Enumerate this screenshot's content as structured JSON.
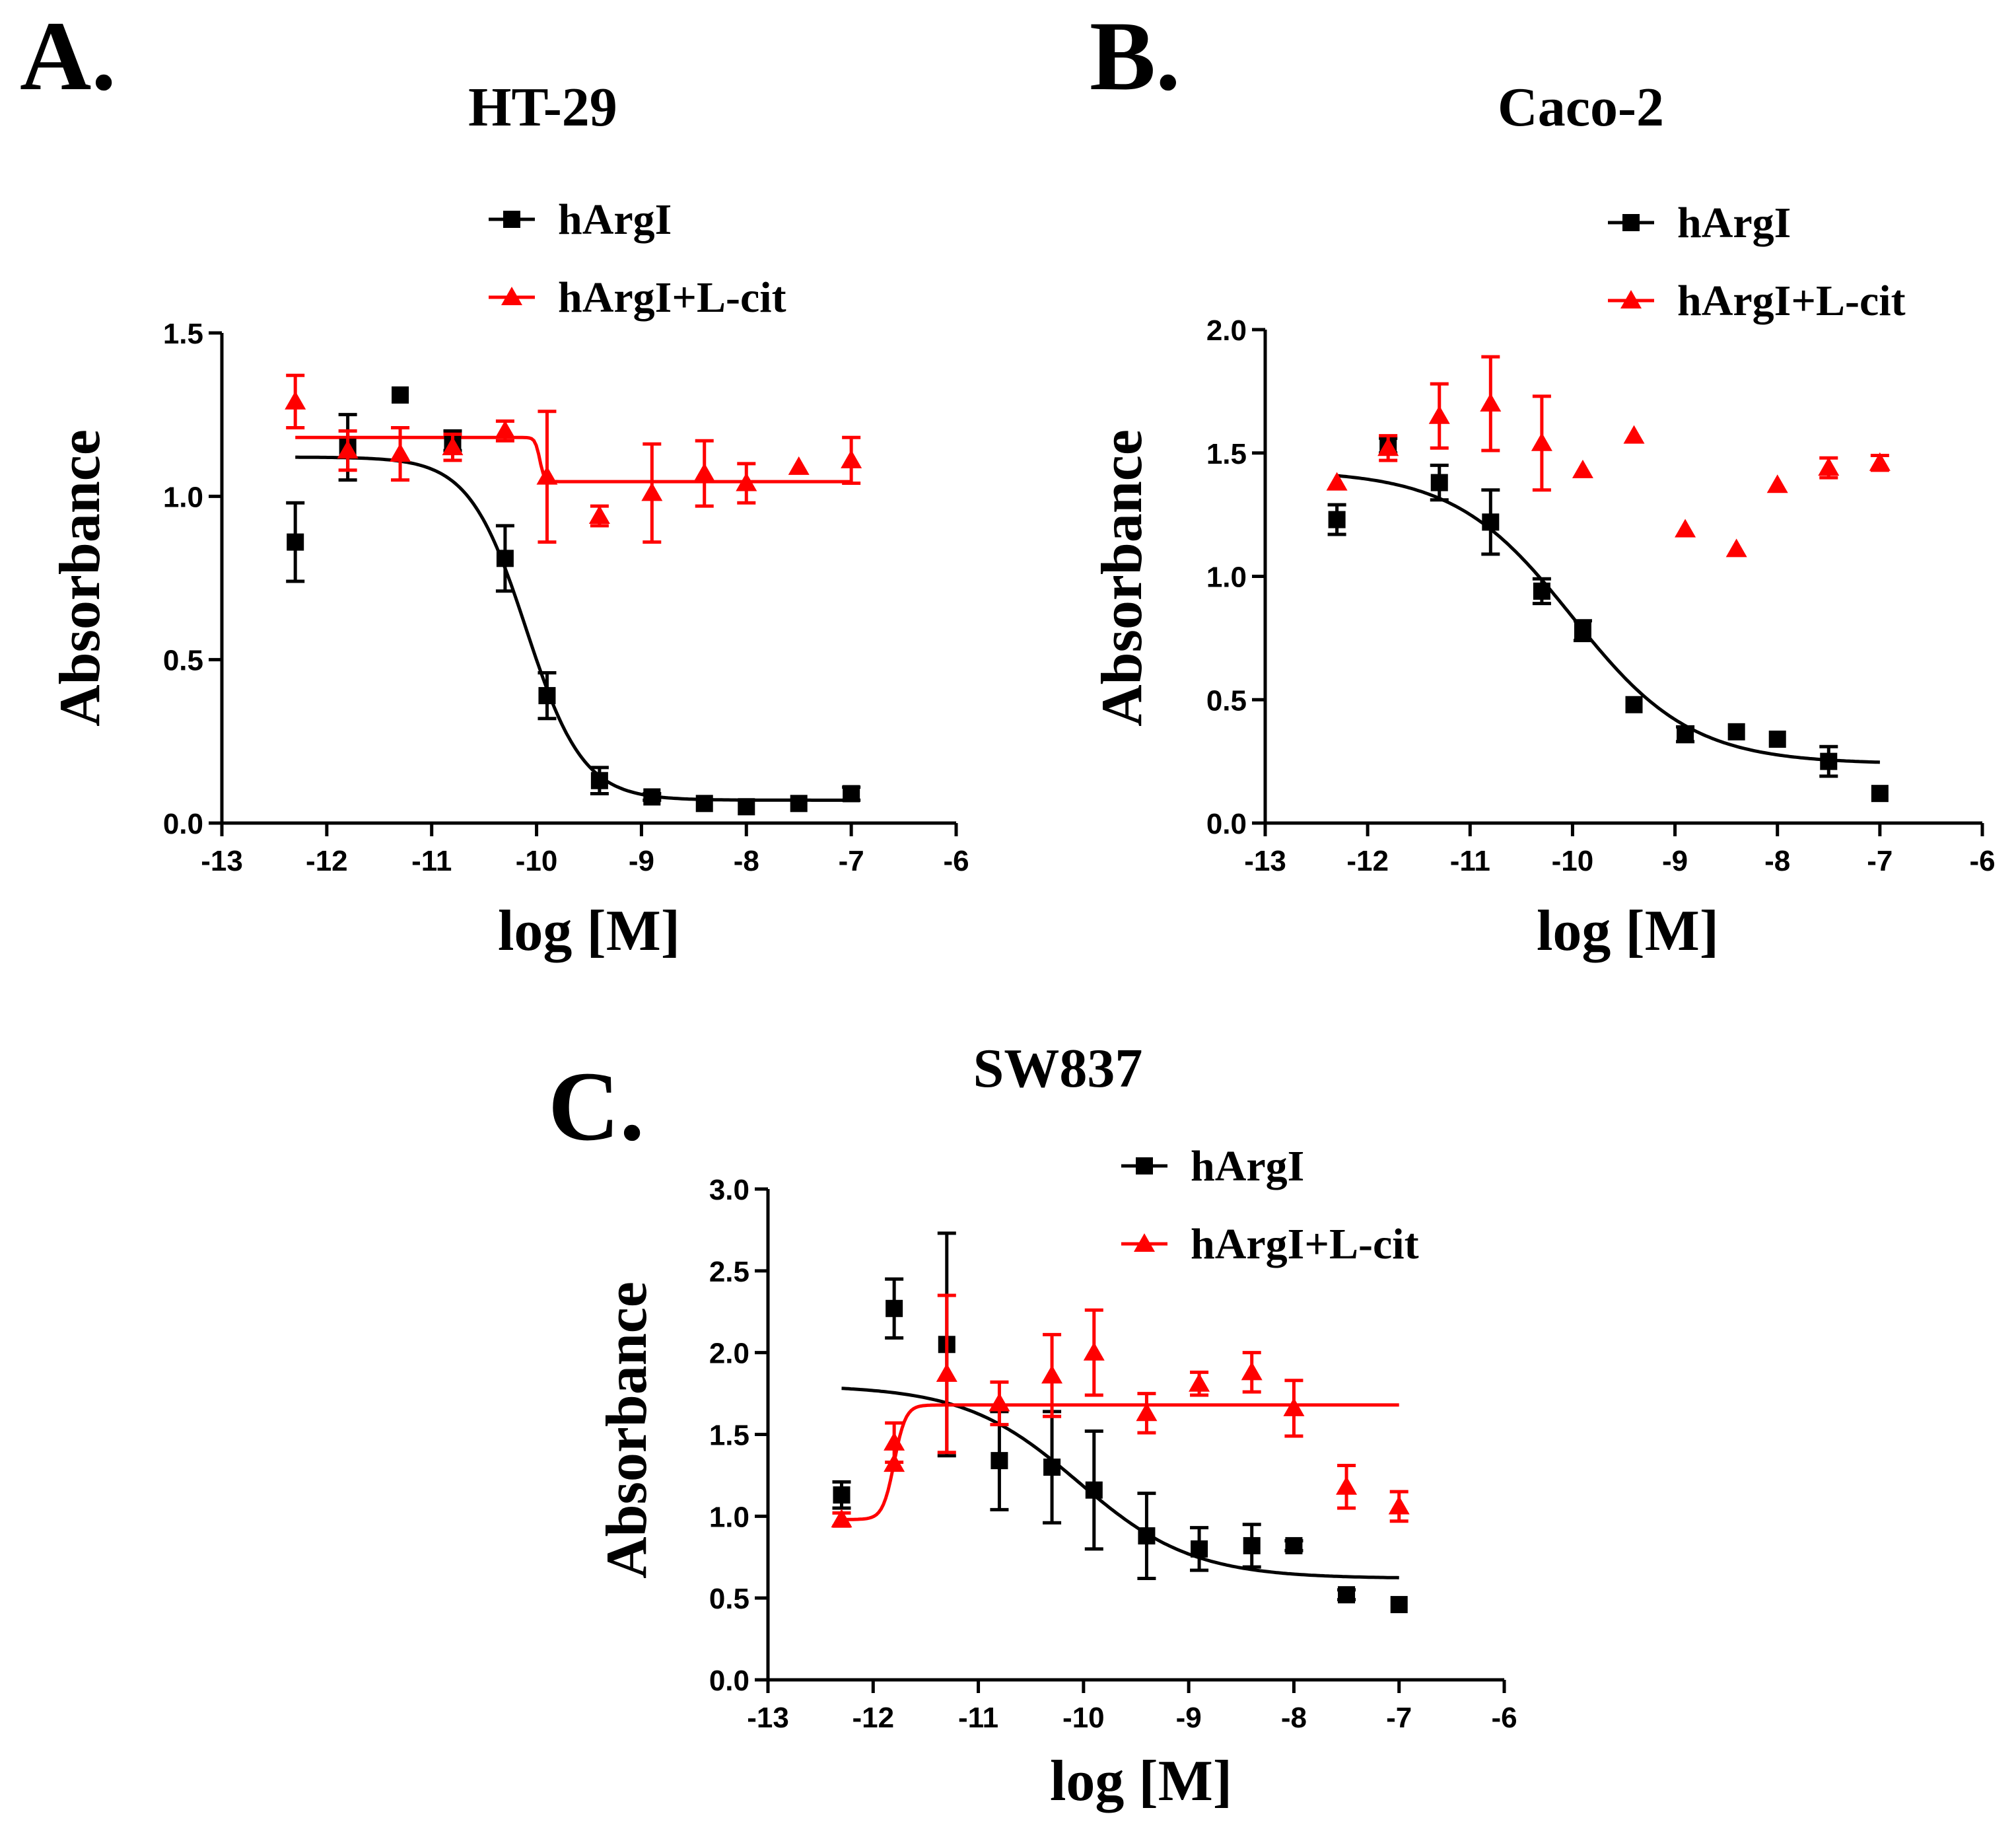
{
  "figure": {
    "colors": {
      "hArgI": "#000000",
      "hArgI_L_cit": "#ff0000",
      "axis": "#000000"
    }
  },
  "chart_data": [
    {
      "panel": "A.",
      "type": "scatter",
      "title": "HT-29",
      "xlabel": "log [M]",
      "ylabel": "Absorbance",
      "xlim": [
        -13,
        -6
      ],
      "ylim": [
        0,
        1.5
      ],
      "xticks": [
        -13,
        -12,
        -11,
        -10,
        -9,
        -8,
        -7,
        -6
      ],
      "yticks": [
        0,
        0.5,
        1.0,
        1.5
      ],
      "ytick_labels": [
        "0.0",
        "0.5",
        "1.0",
        "1.5"
      ],
      "legend": [
        "hArgI",
        "hArgI+L-cit"
      ],
      "series": [
        {
          "name": "hArgI",
          "color": "#000000",
          "marker": "square",
          "points": [
            {
              "x": -12.3,
              "y": 0.86,
              "err": 0.12
            },
            {
              "x": -11.8,
              "y": 1.15,
              "err": 0.1
            },
            {
              "x": -11.3,
              "y": 1.31,
              "err": 0
            },
            {
              "x": -10.8,
              "y": 1.17,
              "err": 0.03
            },
            {
              "x": -10.3,
              "y": 0.81,
              "err": 0.1
            },
            {
              "x": -9.9,
              "y": 0.39,
              "err": 0.07
            },
            {
              "x": -9.4,
              "y": 0.13,
              "err": 0.04
            },
            {
              "x": -8.9,
              "y": 0.08,
              "err": 0.01
            },
            {
              "x": -8.4,
              "y": 0.06,
              "err": 0
            },
            {
              "x": -8.0,
              "y": 0.05,
              "err": 0
            },
            {
              "x": -7.5,
              "y": 0.06,
              "err": 0
            },
            {
              "x": -7.0,
              "y": 0.09,
              "err": 0.02
            }
          ],
          "fit": {
            "type": "sigmoid",
            "top": 1.12,
            "bottom": 0.07,
            "log_ec50": -10.1,
            "hill": -1.6,
            "x_range": [
              -12.3,
              -7.0
            ]
          }
        },
        {
          "name": "hArgI+L-cit",
          "color": "#ff0000",
          "marker": "triangle",
          "points": [
            {
              "x": -12.3,
              "y": 1.29,
              "err": 0.08
            },
            {
              "x": -11.8,
              "y": 1.14,
              "err": 0.06
            },
            {
              "x": -11.3,
              "y": 1.13,
              "err": 0.08
            },
            {
              "x": -10.8,
              "y": 1.15,
              "err": 0.04
            },
            {
              "x": -10.3,
              "y": 1.2,
              "err": 0.03
            },
            {
              "x": -9.9,
              "y": 1.06,
              "err": 0.2
            },
            {
              "x": -9.4,
              "y": 0.94,
              "err": 0.03
            },
            {
              "x": -8.9,
              "y": 1.01,
              "err": 0.15
            },
            {
              "x": -8.4,
              "y": 1.07,
              "err": 0.1
            },
            {
              "x": -8.0,
              "y": 1.04,
              "err": 0.06
            },
            {
              "x": -7.5,
              "y": 1.09,
              "err": 0
            },
            {
              "x": -7.0,
              "y": 1.11,
              "err": 0.07
            }
          ],
          "fit": {
            "type": "sigmoid",
            "top": 1.18,
            "bottom": 1.045,
            "log_ec50": -9.97,
            "hill": -20,
            "x_range": [
              -12.3,
              -7.0
            ]
          }
        }
      ]
    },
    {
      "panel": "B.",
      "type": "scatter",
      "title": "Caco-2",
      "xlabel": "log [M]",
      "ylabel": "Absorbance",
      "xlim": [
        -13,
        -6
      ],
      "ylim": [
        0,
        2.0
      ],
      "xticks": [
        -13,
        -12,
        -11,
        -10,
        -9,
        -8,
        -7,
        -6
      ],
      "yticks": [
        0,
        0.5,
        1.0,
        1.5,
        2.0
      ],
      "ytick_labels": [
        "0.0",
        "0.5",
        "1.0",
        "1.5",
        "2.0"
      ],
      "legend": [
        "hArgI",
        "hArgI+L-cit"
      ],
      "series": [
        {
          "name": "hArgI",
          "color": "#000000",
          "marker": "square",
          "points": [
            {
              "x": -12.3,
              "y": 1.23,
              "err": 0.06
            },
            {
              "x": -11.8,
              "y": 1.53,
              "err": 0.03
            },
            {
              "x": -11.3,
              "y": 1.38,
              "err": 0.07
            },
            {
              "x": -10.8,
              "y": 1.22,
              "err": 0.13
            },
            {
              "x": -10.3,
              "y": 0.94,
              "err": 0.05
            },
            {
              "x": -9.9,
              "y": 0.78,
              "err": 0.04
            },
            {
              "x": -9.4,
              "y": 0.48,
              "err": 0
            },
            {
              "x": -8.9,
              "y": 0.36,
              "err": 0.03
            },
            {
              "x": -8.4,
              "y": 0.37,
              "err": 0
            },
            {
              "x": -8.0,
              "y": 0.34,
              "err": 0
            },
            {
              "x": -7.5,
              "y": 0.25,
              "err": 0.06
            },
            {
              "x": -7.0,
              "y": 0.12,
              "err": 0
            }
          ],
          "fit": {
            "type": "sigmoid",
            "top": 1.43,
            "bottom": 0.24,
            "log_ec50": -10.0,
            "hill": -0.75,
            "x_range": [
              -12.3,
              -7.0
            ]
          }
        },
        {
          "name": "hArgI+L-cit",
          "color": "#ff0000",
          "marker": "triangle",
          "points": [
            {
              "x": -12.3,
              "y": 1.38,
              "err": 0
            },
            {
              "x": -11.8,
              "y": 1.52,
              "err": 0.05
            },
            {
              "x": -11.3,
              "y": 1.65,
              "err": 0.13
            },
            {
              "x": -10.8,
              "y": 1.7,
              "err": 0.19
            },
            {
              "x": -10.3,
              "y": 1.54,
              "err": 0.19
            },
            {
              "x": -9.9,
              "y": 1.43,
              "err": 0
            },
            {
              "x": -9.4,
              "y": 1.57,
              "err": 0
            },
            {
              "x": -8.9,
              "y": 1.19,
              "err": 0
            },
            {
              "x": -8.4,
              "y": 1.11,
              "err": 0
            },
            {
              "x": -8.0,
              "y": 1.37,
              "err": 0
            },
            {
              "x": -7.5,
              "y": 1.44,
              "err": 0.04
            },
            {
              "x": -7.0,
              "y": 1.46,
              "err": 0.03
            }
          ]
        }
      ]
    },
    {
      "panel": "C.",
      "type": "scatter",
      "title": "SW837",
      "xlabel": "log [M]",
      "ylabel": "Absorbance",
      "xlim": [
        -13,
        -6
      ],
      "ylim": [
        0,
        3.0
      ],
      "xticks": [
        -13,
        -12,
        -11,
        -10,
        -9,
        -8,
        -7,
        -6
      ],
      "yticks": [
        0,
        0.5,
        1.0,
        1.5,
        2.0,
        2.5,
        3.0
      ],
      "ytick_labels": [
        "0.0",
        "0.5",
        "1.0",
        "1.5",
        "2.0",
        "2.5",
        "3.0"
      ],
      "legend": [
        "hArgI",
        "hArgI+L-cit"
      ],
      "series": [
        {
          "name": "hArgI",
          "color": "#000000",
          "marker": "square",
          "points": [
            {
              "x": -12.3,
              "y": 1.13,
              "err": 0.08
            },
            {
              "x": -11.8,
              "y": 2.27,
              "err": 0.18
            },
            {
              "x": -11.3,
              "y": 2.05,
              "err": 0.68
            },
            {
              "x": -10.8,
              "y": 1.34,
              "err": 0.3
            },
            {
              "x": -10.3,
              "y": 1.3,
              "err": 0.34
            },
            {
              "x": -9.9,
              "y": 1.16,
              "err": 0.36
            },
            {
              "x": -9.4,
              "y": 0.88,
              "err": 0.26
            },
            {
              "x": -8.9,
              "y": 0.8,
              "err": 0.13
            },
            {
              "x": -8.4,
              "y": 0.82,
              "err": 0.13
            },
            {
              "x": -8.0,
              "y": 0.82,
              "err": 0.03
            },
            {
              "x": -7.5,
              "y": 0.52,
              "err": 0.03
            },
            {
              "x": -7.0,
              "y": 0.46,
              "err": 0
            }
          ],
          "fit": {
            "type": "sigmoid",
            "top": 1.8,
            "bottom": 0.62,
            "log_ec50": -10.05,
            "hill": -0.8,
            "x_range": [
              -12.3,
              -7.0
            ]
          }
        },
        {
          "name": "hArgI+L-cit",
          "color": "#ff0000",
          "marker": "triangle",
          "points": [
            {
              "x": -12.3,
              "y": 0.98,
              "err": 0.04
            },
            {
              "x": -11.8,
              "y": 1.45,
              "err": 0.12
            },
            {
              "x": -11.8,
              "y": 1.32,
              "err": 0
            },
            {
              "x": -11.3,
              "y": 1.87,
              "err": 0.48
            },
            {
              "x": -10.8,
              "y": 1.69,
              "err": 0.13
            },
            {
              "x": -10.3,
              "y": 1.86,
              "err": 0.25
            },
            {
              "x": -9.9,
              "y": 2.0,
              "err": 0.26
            },
            {
              "x": -9.4,
              "y": 1.63,
              "err": 0.12
            },
            {
              "x": -8.9,
              "y": 1.81,
              "err": 0.07
            },
            {
              "x": -8.4,
              "y": 1.88,
              "err": 0.12
            },
            {
              "x": -8.0,
              "y": 1.66,
              "err": 0.17
            },
            {
              "x": -7.5,
              "y": 1.18,
              "err": 0.13
            },
            {
              "x": -7.0,
              "y": 1.06,
              "err": 0.09
            }
          ],
          "fit": {
            "type": "sigmoid",
            "top": 1.68,
            "bottom": 0.98,
            "log_ec50": -11.8,
            "hill": 8,
            "x_range": [
              -12.3,
              -7.0
            ]
          }
        }
      ]
    }
  ]
}
